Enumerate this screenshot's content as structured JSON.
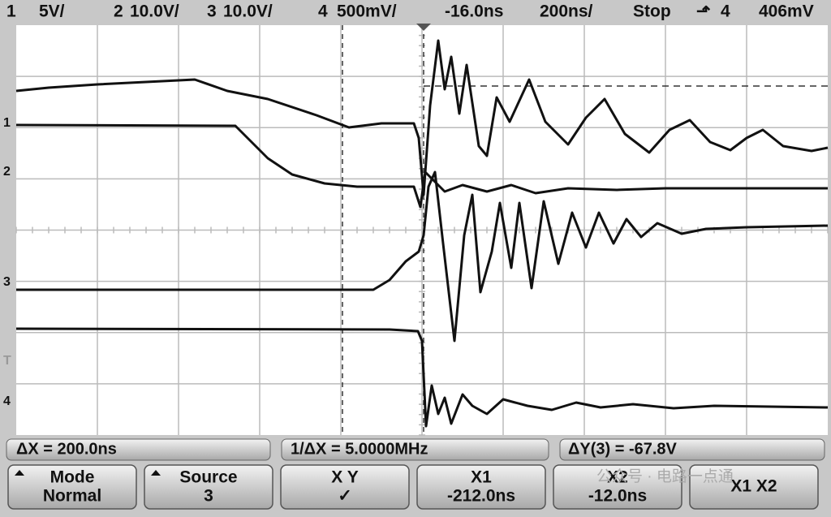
{
  "header": {
    "ch1_label": "1",
    "ch1_scale": "5V/",
    "ch2_label": "2",
    "ch2_scale": "10.0V/",
    "ch3_label": "3",
    "ch3_scale": "10.0V/",
    "ch4_label": "4",
    "ch4_scale": "500mV/",
    "delay": "-16.0ns",
    "timebase": "200ns/",
    "run_state": "Stop",
    "trigger_source": "4",
    "trigger_level": "406mV"
  },
  "markers": {
    "ch1": "1",
    "ch2": "2",
    "ch3": "3",
    "trigger": "T",
    "ch4": "4"
  },
  "measurements": {
    "delta_x": "ΔX = 200.0ns",
    "inv_delta_x": "1/ΔX = 5.0000MHz",
    "delta_y": "ΔY(3) = -67.8V"
  },
  "softkeys": [
    {
      "title": "Mode",
      "value": "Normal"
    },
    {
      "title": "Source",
      "value": "3"
    },
    {
      "title": "X    Y",
      "value": "✓"
    },
    {
      "title": "X1",
      "value": "-212.0ns"
    },
    {
      "title": "X2",
      "value": "-12.0ns"
    },
    {
      "title": "X1 X2"
    }
  ],
  "watermark": "公众号 · 电路一点通"
}
